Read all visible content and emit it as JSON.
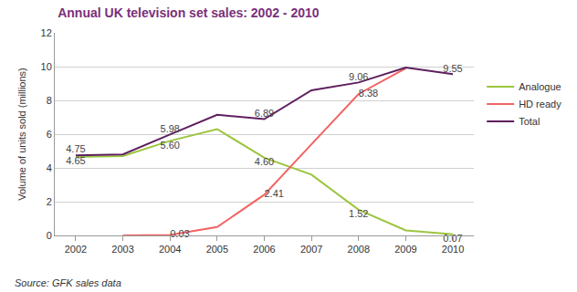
{
  "chart_data": {
    "type": "line",
    "title": "Annual UK television set sales: 2002 - 2010",
    "y_label": "Volume of units sold (millions)",
    "annotations": [
      "Source: GFK sales data"
    ],
    "categories": [
      "2002",
      "2003",
      "2004",
      "2005",
      "2006",
      "2007",
      "2008",
      "2009",
      "2010"
    ],
    "series": [
      {
        "name": "Analogue",
        "color": "#9bc53d",
        "values": [
          4.65,
          4.7,
          5.6,
          6.3,
          4.6,
          3.6,
          1.52,
          0.3,
          0.07
        ],
        "value_labels": [
          "4.65",
          null,
          "5.60",
          null,
          "4.60",
          null,
          "1.52",
          null,
          "0.07"
        ]
      },
      {
        "name": "HD ready",
        "color": "#f26363",
        "values": [
          null,
          0,
          0.03,
          0.5,
          2.41,
          5.4,
          8.38,
          9.9,
          null
        ],
        "value_labels": [
          null,
          null,
          "0.03",
          null,
          "2.41",
          null,
          "8.38",
          null,
          null
        ]
      },
      {
        "name": "Total",
        "color": "#5e1f5e",
        "values": [
          4.75,
          4.8,
          5.98,
          7.15,
          6.89,
          8.6,
          9.06,
          9.95,
          9.55
        ],
        "value_labels": [
          "4.75",
          null,
          "5.98",
          null,
          "6.89",
          null,
          "9.06",
          null,
          "9.55"
        ]
      }
    ],
    "ylim": [
      0,
      12
    ],
    "yticks": [
      0,
      2,
      4,
      6,
      8,
      10,
      12
    ],
    "grid": true,
    "legend": "right",
    "data_labels": true
  }
}
